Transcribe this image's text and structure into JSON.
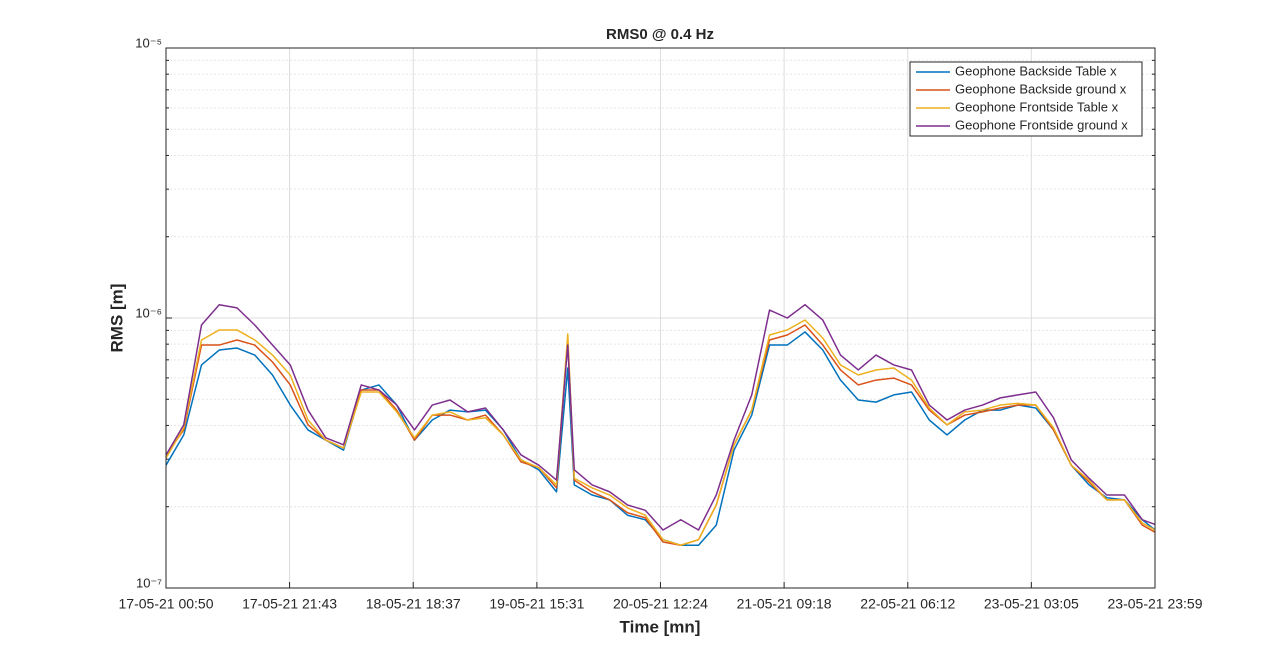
{
  "chart_data": {
    "type": "line",
    "title": "RMS0 @ 0.4 Hz",
    "x_label": "Time [mn]",
    "y_label": "RMS [m]",
    "log_y": true,
    "grid": true,
    "legend": "top-right",
    "x": [
      "17-05-21 00:50",
      "17-05-21 03:50",
      "17-05-21 06:50",
      "17-05-21 09:50",
      "17-05-21 12:50",
      "17-05-21 15:50",
      "17-05-21 18:50",
      "17-05-21 21:50",
      "18-05-21 00:50",
      "18-05-21 03:50",
      "18-05-21 06:50",
      "18-05-21 09:50",
      "18-05-21 12:50",
      "18-05-21 15:50",
      "18-05-21 18:50",
      "18-05-21 21:50",
      "19-05-21 00:50",
      "19-05-21 03:50",
      "19-05-21 06:50",
      "19-05-21 09:50",
      "19-05-21 12:50",
      "19-05-21 15:50",
      "19-05-21 18:50",
      "19-05-21 20:44",
      "19-05-21 21:50",
      "20-05-21 00:50",
      "20-05-21 03:50",
      "20-05-21 06:50",
      "20-05-21 09:50",
      "20-05-21 12:50",
      "20-05-21 15:50",
      "20-05-21 18:50",
      "20-05-21 21:50",
      "21-05-21 00:50",
      "21-05-21 03:50",
      "21-05-21 06:50",
      "21-05-21 09:50",
      "21-05-21 12:50",
      "21-05-21 15:50",
      "21-05-21 18:50",
      "21-05-21 21:50",
      "22-05-21 00:50",
      "22-05-21 03:50",
      "22-05-21 06:50",
      "22-05-21 09:50",
      "22-05-21 12:50",
      "22-05-21 15:50",
      "22-05-21 18:50",
      "22-05-21 21:50",
      "23-05-21 00:50",
      "23-05-21 03:50",
      "23-05-21 06:50",
      "23-05-21 09:50",
      "23-05-21 12:50",
      "23-05-21 15:50",
      "23-05-21 18:50",
      "23-05-21 21:50",
      "23-05-21 23:59"
    ],
    "series": [
      {
        "name": "Geophone Backside Table x",
        "color": "#0072BD",
        "values": [
          2.85e-07,
          3.69e-07,
          6.7e-07,
          7.61e-07,
          7.74e-07,
          7.29e-07,
          6.15e-07,
          4.76e-07,
          3.85e-07,
          3.53e-07,
          3.24e-07,
          5.41e-07,
          5.65e-07,
          4.76e-07,
          3.53e-07,
          4.19e-07,
          4.56e-07,
          4.49e-07,
          4.56e-07,
          3.85e-07,
          2.98e-07,
          2.74e-07,
          2.27e-07,
          6.53e-07,
          2.41e-07,
          2.21e-07,
          2.12e-07,
          1.86e-07,
          1.79e-07,
          1.51e-07,
          1.44e-07,
          1.44e-07,
          1.71e-07,
          3.24e-07,
          4.37e-07,
          7.94e-07,
          7.94e-07,
          8.88e-07,
          7.61e-07,
          5.89e-07,
          4.97e-07,
          4.88e-07,
          5.19e-07,
          5.32e-07,
          4.19e-07,
          3.69e-07,
          4.19e-07,
          4.56e-07,
          4.56e-07,
          4.76e-07,
          4.64e-07,
          3.85e-07,
          2.85e-07,
          2.41e-07,
          2.16e-07,
          2.12e-07,
          1.79e-07,
          1.64e-07
        ]
      },
      {
        "name": "Geophone Backside ground x",
        "color": "#D95319",
        "values": [
          3.11e-07,
          3.85e-07,
          7.94e-07,
          7.94e-07,
          8.29e-07,
          7.94e-07,
          6.87e-07,
          5.65e-07,
          4.02e-07,
          3.53e-07,
          3.3e-07,
          5.41e-07,
          5.41e-07,
          4.56e-07,
          3.53e-07,
          4.37e-07,
          4.37e-07,
          4.19e-07,
          4.37e-07,
          3.69e-07,
          2.93e-07,
          2.79e-07,
          2.35e-07,
          8.29e-07,
          2.51e-07,
          2.27e-07,
          2.12e-07,
          1.9e-07,
          1.82e-07,
          1.48e-07,
          1.44e-07,
          1.51e-07,
          2.03e-07,
          3.39e-07,
          4.56e-07,
          8.29e-07,
          8.65e-07,
          9.42e-07,
          7.94e-07,
          6.42e-07,
          5.65e-07,
          5.89e-07,
          5.99e-07,
          5.65e-07,
          4.56e-07,
          4.02e-07,
          4.37e-07,
          4.49e-07,
          4.64e-07,
          4.76e-07,
          4.76e-07,
          3.85e-07,
          2.85e-07,
          2.47e-07,
          2.12e-07,
          2.12e-07,
          1.71e-07,
          1.61e-07
        ]
      },
      {
        "name": "Geophone Frontside Table x",
        "color": "#EDB120",
        "values": [
          3.03e-07,
          3.92e-07,
          8.29e-07,
          9.03e-07,
          9.03e-07,
          8.29e-07,
          7.29e-07,
          6.15e-07,
          4.19e-07,
          3.53e-07,
          3.3e-07,
          5.32e-07,
          5.32e-07,
          4.49e-07,
          3.6e-07,
          4.37e-07,
          4.49e-07,
          4.19e-07,
          4.27e-07,
          3.69e-07,
          2.98e-07,
          2.79e-07,
          2.41e-07,
          8.72e-07,
          2.55e-07,
          2.35e-07,
          2.21e-07,
          1.98e-07,
          1.86e-07,
          1.51e-07,
          1.44e-07,
          1.51e-07,
          2.03e-07,
          3.39e-07,
          4.56e-07,
          8.65e-07,
          9.03e-07,
          9.83e-07,
          8.43e-07,
          6.7e-07,
          6.15e-07,
          6.42e-07,
          6.53e-07,
          5.89e-07,
          4.64e-07,
          4.02e-07,
          4.49e-07,
          4.56e-07,
          4.76e-07,
          4.83e-07,
          4.76e-07,
          3.92e-07,
          2.85e-07,
          2.51e-07,
          2.12e-07,
          2.12e-07,
          1.74e-07,
          1.64e-07
        ]
      },
      {
        "name": "Geophone Frontside ground x",
        "color": "#7E2F8E",
        "values": [
          3.11e-07,
          4.02e-07,
          9.42e-07,
          1.12e-06,
          1.09e-06,
          9.42e-07,
          7.94e-07,
          6.7e-07,
          4.56e-07,
          3.6e-07,
          3.39e-07,
          5.65e-07,
          5.41e-07,
          4.76e-07,
          3.85e-07,
          4.76e-07,
          4.97e-07,
          4.49e-07,
          4.64e-07,
          3.85e-07,
          3.11e-07,
          2.85e-07,
          2.51e-07,
          7.94e-07,
          2.74e-07,
          2.41e-07,
          2.27e-07,
          2.03e-07,
          1.94e-07,
          1.64e-07,
          1.79e-07,
          1.64e-07,
          2.21e-07,
          3.53e-07,
          5.19e-07,
          1.07e-06,
          1e-06,
          1.12e-06,
          9.83e-07,
          7.29e-07,
          6.42e-07,
          7.29e-07,
          6.7e-07,
          6.42e-07,
          4.76e-07,
          4.19e-07,
          4.56e-07,
          4.76e-07,
          5.06e-07,
          5.19e-07,
          5.32e-07,
          4.27e-07,
          2.98e-07,
          2.55e-07,
          2.21e-07,
          2.21e-07,
          1.79e-07,
          1.72e-07
        ]
      }
    ],
    "xlim": [
      "17-05-21 00:50",
      "23-05-21 23:59"
    ],
    "xticks": [
      "17-05-21 00:50",
      "17-05-21 21:43",
      "18-05-21 18:37",
      "19-05-21 15:31",
      "20-05-21 12:24",
      "21-05-21 09:18",
      "22-05-21 06:12",
      "23-05-21 03:05",
      "23-05-21 23:59"
    ],
    "ylim": [
      1e-07,
      1e-05
    ],
    "yticks": [
      {
        "value": 1e-07,
        "label": "10⁻⁷"
      },
      {
        "value": 1e-06,
        "label": "10⁻⁶"
      },
      {
        "value": 1e-05,
        "label": "10⁻⁵"
      }
    ]
  }
}
